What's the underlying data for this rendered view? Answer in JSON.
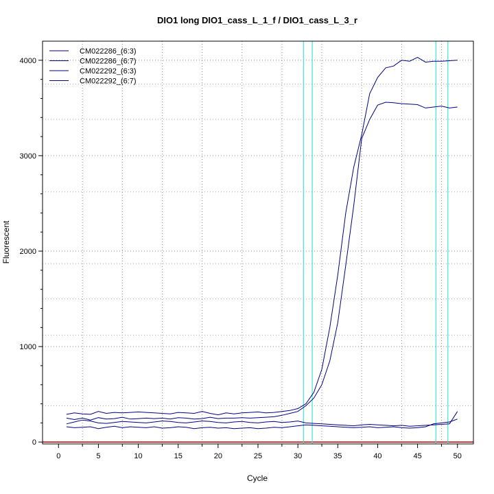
{
  "chart_data": {
    "type": "line",
    "title": "DIO1 long DIO1_cass_L_1_f / DIO1_cass_L_3_r",
    "xlabel": "Cycle",
    "ylabel": "Fluorescent",
    "xlim": [
      -2,
      52
    ],
    "ylim": [
      -20,
      4200
    ],
    "x_ticks": [
      0,
      5,
      10,
      15,
      20,
      25,
      30,
      35,
      40,
      45,
      50
    ],
    "y_ticks": [
      0,
      1000,
      2000,
      3000,
      4000
    ],
    "x_minor_ticks": [
      3,
      8,
      13,
      18,
      23,
      28,
      33,
      38,
      43,
      48
    ],
    "y_minor_ticks": [
      200,
      400,
      600,
      800,
      1200,
      1400,
      1600,
      1800,
      2200,
      2400,
      2600,
      2800,
      3200,
      3400,
      3600,
      3800
    ],
    "x_grid": [
      3,
      8,
      13,
      18,
      23,
      28,
      33,
      38,
      43,
      48
    ],
    "y_grid": [
      1000,
      2000,
      3000,
      4000
    ],
    "y_grid_minor": [
      380,
      1120,
      1500,
      1870,
      2620,
      3000,
      3380,
      3750
    ],
    "grid": true,
    "legend_position": "top-left",
    "colors": {
      "series": "#000080",
      "threshold_lines": "#40e0e0",
      "baseline": "#c00000"
    },
    "vertical_markers": [
      30.7,
      31.8,
      47.3,
      48.8
    ],
    "baseline_y": 0,
    "x": [
      1,
      2,
      3,
      4,
      5,
      6,
      7,
      8,
      9,
      10,
      11,
      12,
      13,
      14,
      15,
      16,
      17,
      18,
      19,
      20,
      21,
      22,
      23,
      24,
      25,
      26,
      27,
      28,
      29,
      30,
      31,
      32,
      33,
      34,
      35,
      36,
      37,
      38,
      39,
      40,
      41,
      42,
      43,
      44,
      45,
      46,
      47,
      48,
      49,
      50
    ],
    "series": [
      {
        "name": "CM022286_(6:3)",
        "values": [
          290,
          305,
          295,
          290,
          320,
          300,
          310,
          305,
          310,
          315,
          310,
          305,
          300,
          295,
          310,
          305,
          300,
          320,
          300,
          285,
          305,
          295,
          305,
          310,
          315,
          305,
          310,
          320,
          330,
          350,
          400,
          520,
          760,
          1200,
          1750,
          2400,
          2880,
          3220,
          3650,
          3820,
          3920,
          3940,
          4000,
          3990,
          4030,
          3980,
          3990,
          3990,
          3995,
          4000
        ]
      },
      {
        "name": "CM022286_(6:7)",
        "values": [
          250,
          235,
          250,
          230,
          255,
          240,
          245,
          260,
          240,
          245,
          250,
          245,
          250,
          240,
          255,
          250,
          240,
          245,
          260,
          245,
          250,
          250,
          255,
          250,
          255,
          260,
          265,
          280,
          300,
          320,
          380,
          460,
          600,
          850,
          1250,
          1850,
          2480,
          3180,
          3380,
          3530,
          3560,
          3555,
          3545,
          3540,
          3535,
          3500,
          3510,
          3520,
          3500,
          3510
        ]
      },
      {
        "name": "CM022292_(6:3)",
        "values": [
          190,
          210,
          230,
          220,
          200,
          195,
          205,
          215,
          210,
          205,
          200,
          210,
          220,
          215,
          205,
          200,
          210,
          220,
          215,
          205,
          200,
          210,
          215,
          205,
          200,
          210,
          215,
          205,
          210,
          220,
          200,
          195,
          190,
          185,
          180,
          175,
          170,
          180,
          185,
          180,
          175,
          170,
          175,
          165,
          170,
          175,
          180,
          185,
          190,
          320
        ]
      },
      {
        "name": "CM022292_(6:7)",
        "values": [
          160,
          150,
          155,
          160,
          140,
          155,
          165,
          150,
          160,
          155,
          150,
          160,
          145,
          150,
          160,
          155,
          140,
          150,
          155,
          145,
          150,
          140,
          145,
          150,
          140,
          145,
          155,
          150,
          160,
          170,
          180,
          175,
          170,
          165,
          160,
          155,
          150,
          155,
          160,
          150,
          155,
          160,
          150,
          145,
          150,
          160,
          190,
          200,
          210,
          240
        ]
      }
    ]
  }
}
